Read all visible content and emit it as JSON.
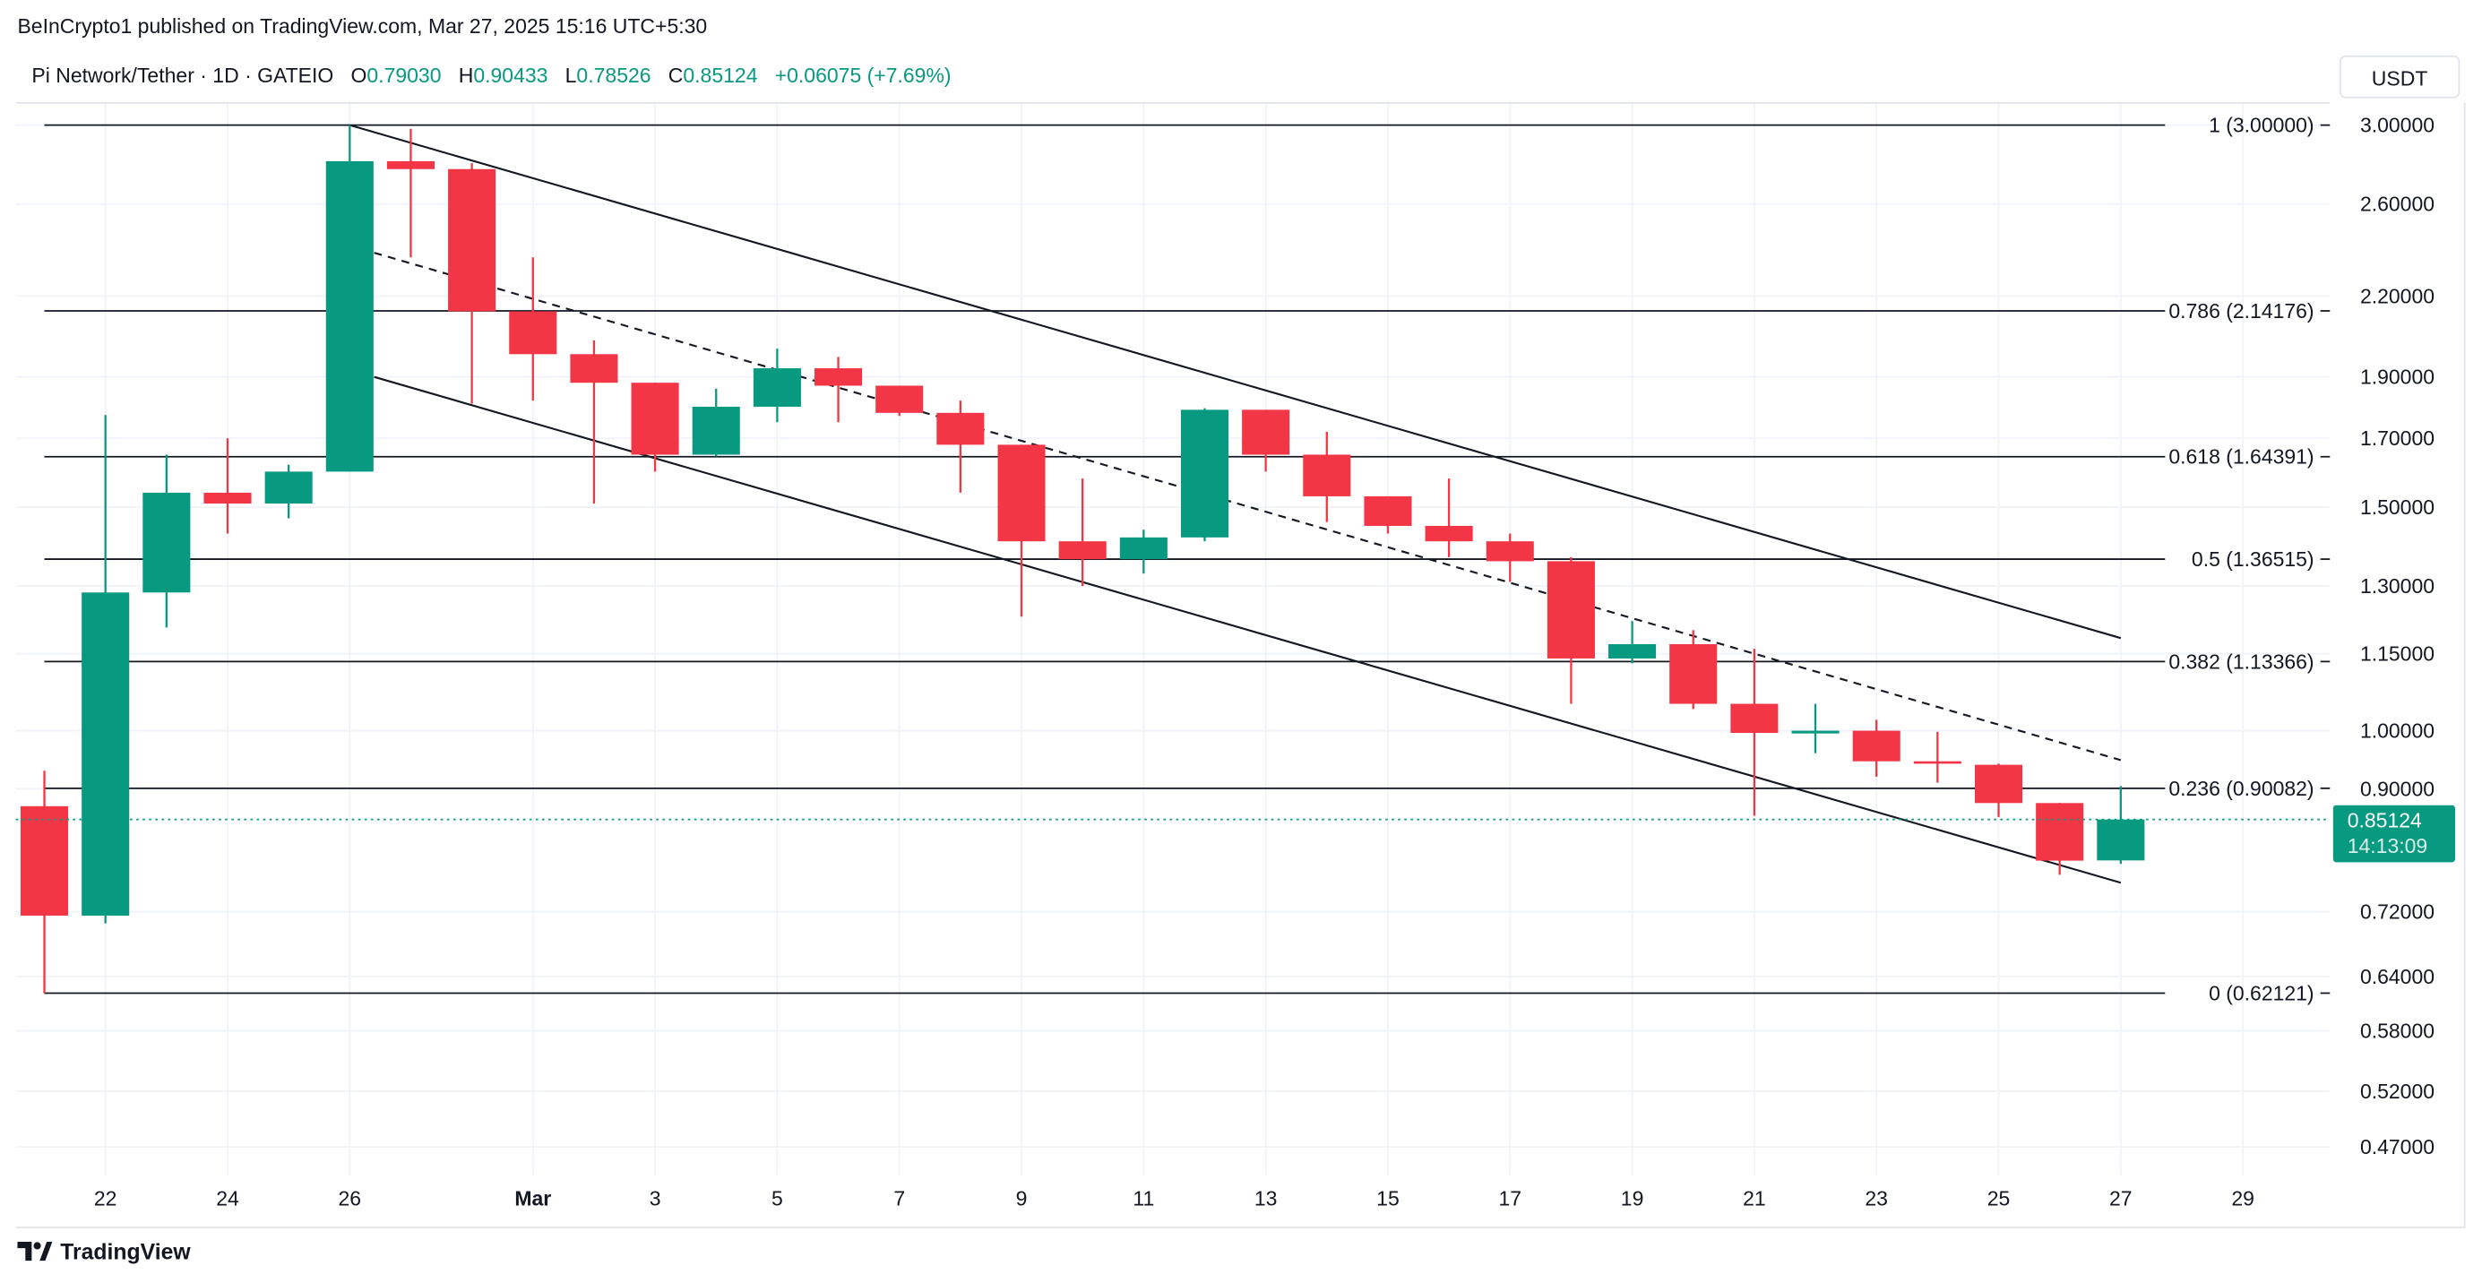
{
  "header": {
    "published": "BeInCrypto1 published on TradingView.com, Mar 27, 2025 15:16 UTC+5:30",
    "symbol": "Pi Network/Tether · 1D · GATEIO",
    "o_label": "O",
    "o": "0.79030",
    "h_label": "H",
    "h": "0.90433",
    "l_label": "L",
    "l": "0.78526",
    "c_label": "C",
    "c": "0.85124",
    "change": "+0.06075 (+7.69%)"
  },
  "currency_button": "USDT",
  "brand": "TradingView",
  "colors": {
    "up": "#089981",
    "down": "#f23645",
    "grid": "#f0f3fa",
    "line": "#131722"
  },
  "chart_data": {
    "type": "candlestick",
    "y_scale": "log",
    "ylim": [
      0.45,
      3.1
    ],
    "grid": true,
    "y_ticks": [
      "3.00000",
      "2.60000",
      "2.20000",
      "1.90000",
      "1.70000",
      "1.50000",
      "1.30000",
      "1.15000",
      "1.00000",
      "0.90000",
      "0.72000",
      "0.64000",
      "0.58000",
      "0.52000",
      "0.47000"
    ],
    "x_ticks": [
      {
        "date": "2025-02-22",
        "label": "22"
      },
      {
        "date": "2025-02-24",
        "label": "24"
      },
      {
        "date": "2025-02-26",
        "label": "26"
      },
      {
        "date": "2025-03-01",
        "label": "Mar",
        "bold": true
      },
      {
        "date": "2025-03-03",
        "label": "3"
      },
      {
        "date": "2025-03-05",
        "label": "5"
      },
      {
        "date": "2025-03-07",
        "label": "7"
      },
      {
        "date": "2025-03-09",
        "label": "9"
      },
      {
        "date": "2025-03-11",
        "label": "11"
      },
      {
        "date": "2025-03-13",
        "label": "13"
      },
      {
        "date": "2025-03-15",
        "label": "15"
      },
      {
        "date": "2025-03-17",
        "label": "17"
      },
      {
        "date": "2025-03-19",
        "label": "19"
      },
      {
        "date": "2025-03-21",
        "label": "21"
      },
      {
        "date": "2025-03-23",
        "label": "23"
      },
      {
        "date": "2025-03-25",
        "label": "25"
      },
      {
        "date": "2025-03-27",
        "label": "27"
      },
      {
        "date": "2025-03-29",
        "label": "29"
      }
    ],
    "candles": [
      {
        "date": "2025-02-21",
        "o": 0.872,
        "h": 0.93,
        "l": 0.621,
        "c": 0.715
      },
      {
        "date": "2025-02-22",
        "o": 0.715,
        "h": 1.773,
        "l": 0.705,
        "c": 1.285
      },
      {
        "date": "2025-02-23",
        "o": 1.285,
        "h": 1.65,
        "l": 1.206,
        "c": 1.54
      },
      {
        "date": "2025-02-24",
        "o": 1.54,
        "h": 1.7,
        "l": 1.43,
        "c": 1.51
      },
      {
        "date": "2025-02-25",
        "o": 1.51,
        "h": 1.62,
        "l": 1.47,
        "c": 1.6
      },
      {
        "date": "2025-02-26",
        "o": 1.6,
        "h": 3.0,
        "l": 1.6,
        "c": 2.81
      },
      {
        "date": "2025-02-27",
        "o": 2.81,
        "h": 2.98,
        "l": 2.36,
        "c": 2.77
      },
      {
        "date": "2025-02-28",
        "o": 2.77,
        "h": 2.8,
        "l": 1.81,
        "c": 2.14
      },
      {
        "date": "2025-03-01",
        "o": 2.14,
        "h": 2.36,
        "l": 1.82,
        "c": 1.98
      },
      {
        "date": "2025-03-02",
        "o": 1.98,
        "h": 2.03,
        "l": 1.51,
        "c": 1.88
      },
      {
        "date": "2025-03-03",
        "o": 1.88,
        "h": 1.88,
        "l": 1.6,
        "c": 1.65
      },
      {
        "date": "2025-03-04",
        "o": 1.65,
        "h": 1.86,
        "l": 1.645,
        "c": 1.8
      },
      {
        "date": "2025-03-05",
        "o": 1.8,
        "h": 2.0,
        "l": 1.75,
        "c": 1.93
      },
      {
        "date": "2025-03-06",
        "o": 1.93,
        "h": 1.97,
        "l": 1.75,
        "c": 1.87
      },
      {
        "date": "2025-03-07",
        "o": 1.87,
        "h": 1.87,
        "l": 1.77,
        "c": 1.78
      },
      {
        "date": "2025-03-08",
        "o": 1.78,
        "h": 1.82,
        "l": 1.54,
        "c": 1.68
      },
      {
        "date": "2025-03-09",
        "o": 1.68,
        "h": 1.68,
        "l": 1.23,
        "c": 1.41
      },
      {
        "date": "2025-03-10",
        "o": 1.41,
        "h": 1.58,
        "l": 1.3,
        "c": 1.365
      },
      {
        "date": "2025-03-11",
        "o": 1.365,
        "h": 1.44,
        "l": 1.33,
        "c": 1.42
      },
      {
        "date": "2025-03-12",
        "o": 1.42,
        "h": 1.795,
        "l": 1.41,
        "c": 1.79
      },
      {
        "date": "2025-03-13",
        "o": 1.79,
        "h": 1.79,
        "l": 1.6,
        "c": 1.65
      },
      {
        "date": "2025-03-14",
        "o": 1.65,
        "h": 1.72,
        "l": 1.46,
        "c": 1.53
      },
      {
        "date": "2025-03-15",
        "o": 1.53,
        "h": 1.53,
        "l": 1.43,
        "c": 1.45
      },
      {
        "date": "2025-03-16",
        "o": 1.45,
        "h": 1.58,
        "l": 1.37,
        "c": 1.41
      },
      {
        "date": "2025-03-17",
        "o": 1.41,
        "h": 1.43,
        "l": 1.31,
        "c": 1.36
      },
      {
        "date": "2025-03-18",
        "o": 1.36,
        "h": 1.37,
        "l": 1.05,
        "c": 1.14
      },
      {
        "date": "2025-03-19",
        "o": 1.14,
        "h": 1.22,
        "l": 1.13,
        "c": 1.17
      },
      {
        "date": "2025-03-20",
        "o": 1.17,
        "h": 1.2,
        "l": 1.04,
        "c": 1.05
      },
      {
        "date": "2025-03-21",
        "o": 1.05,
        "h": 1.16,
        "l": 0.857,
        "c": 0.996
      },
      {
        "date": "2025-03-22",
        "o": 0.995,
        "h": 1.05,
        "l": 0.96,
        "c": 1.0
      },
      {
        "date": "2025-03-23",
        "o": 1.0,
        "h": 1.02,
        "l": 0.92,
        "c": 0.946
      },
      {
        "date": "2025-03-24",
        "o": 0.946,
        "h": 0.998,
        "l": 0.91,
        "c": 0.943
      },
      {
        "date": "2025-03-25",
        "o": 0.94,
        "h": 0.942,
        "l": 0.855,
        "c": 0.877
      },
      {
        "date": "2025-03-26",
        "o": 0.877,
        "h": 0.877,
        "l": 0.77,
        "c": 0.79
      },
      {
        "date": "2025-03-27",
        "o": 0.7903,
        "h": 0.90433,
        "l": 0.78526,
        "c": 0.85124
      }
    ],
    "fib_levels": [
      {
        "ratio": 1,
        "price": 3.0,
        "label": "1 (3.00000)"
      },
      {
        "ratio": 0.786,
        "price": 2.14176,
        "label": "0.786 (2.14176)"
      },
      {
        "ratio": 0.618,
        "price": 1.64391,
        "label": "0.618 (1.64391)"
      },
      {
        "ratio": 0.5,
        "price": 1.36515,
        "label": "0.5 (1.36515)"
      },
      {
        "ratio": 0.382,
        "price": 1.13366,
        "label": "0.382 (1.13366)"
      },
      {
        "ratio": 0.236,
        "price": 0.90082,
        "label": "0.236 (0.90082)"
      },
      {
        "ratio": 0,
        "price": 0.62121,
        "label": "0 (0.62121)"
      }
    ],
    "trend_lines": [
      {
        "style": "solid",
        "from": {
          "date": "2025-02-26",
          "price": 3.0
        },
        "to": {
          "date": "2025-03-27",
          "price": 1.183
        }
      },
      {
        "style": "dashed",
        "from": {
          "date": "2025-02-26.4",
          "price": 2.38
        },
        "to": {
          "date": "2025-03-27",
          "price": 0.948
        }
      },
      {
        "style": "solid",
        "from": {
          "date": "2025-02-26.4",
          "price": 1.9
        },
        "to": {
          "date": "2025-03-27",
          "price": 0.759
        }
      }
    ],
    "last_price": {
      "value": "0.85124",
      "countdown": "14:13:09"
    }
  }
}
